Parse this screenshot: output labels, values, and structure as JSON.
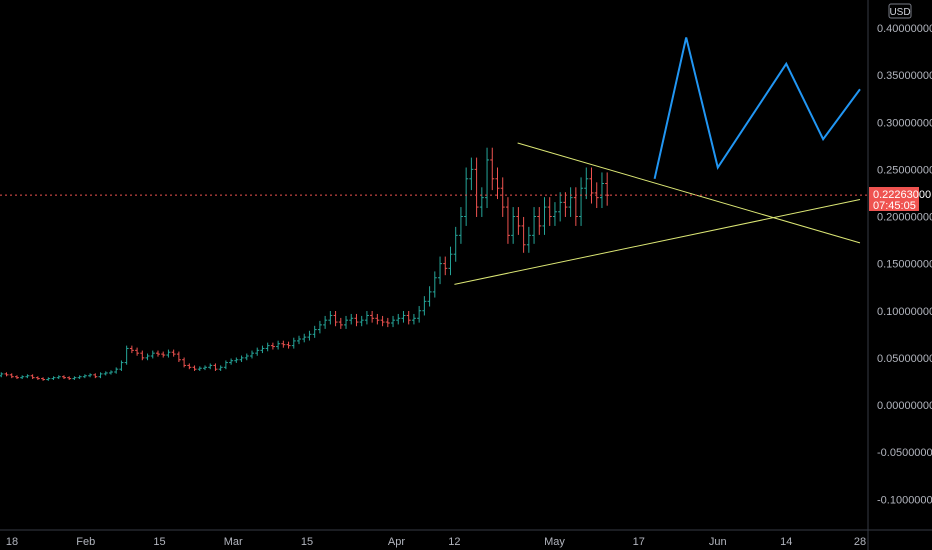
{
  "chart_data": {
    "type": "candlestick",
    "currency": "USD",
    "last_price": "0.22263000",
    "countdown": "07:45:05",
    "y_ticks": [
      "0.40000000",
      "0.35000000",
      "0.30000000",
      "0.25000000",
      "0.20000000",
      "0.15000000",
      "0.10000000",
      "0.05000000",
      "0.00000000",
      "-0.05000000",
      "-0.10000000"
    ],
    "y_values": [
      0.4,
      0.35,
      0.3,
      0.25,
      0.2,
      0.15,
      0.1,
      0.05,
      0.0,
      -0.05,
      -0.1
    ],
    "x_ticks": [
      "18",
      "Feb",
      "15",
      "Mar",
      "15",
      "Apr",
      "12",
      "May",
      "17",
      "Jun",
      "14",
      "28"
    ],
    "ylim": [
      -0.12,
      0.42
    ],
    "grid": false,
    "candles": {
      "start_date": "2021-01-18",
      "closes": [
        0.028,
        0.029,
        0.03,
        0.031,
        0.033,
        0.032,
        0.03,
        0.029,
        0.03,
        0.031,
        0.029,
        0.028,
        0.027,
        0.028,
        0.029,
        0.03,
        0.029,
        0.028,
        0.029,
        0.03,
        0.031,
        0.032,
        0.03,
        0.033,
        0.034,
        0.035,
        0.038,
        0.045,
        0.06,
        0.058,
        0.055,
        0.05,
        0.052,
        0.055,
        0.054,
        0.053,
        0.056,
        0.054,
        0.048,
        0.042,
        0.04,
        0.038,
        0.039,
        0.04,
        0.042,
        0.038,
        0.04,
        0.045,
        0.047,
        0.048,
        0.05,
        0.052,
        0.055,
        0.058,
        0.06,
        0.063,
        0.062,
        0.065,
        0.064,
        0.063,
        0.068,
        0.07,
        0.072,
        0.075,
        0.08,
        0.085,
        0.09,
        0.095,
        0.088,
        0.085,
        0.09,
        0.092,
        0.088,
        0.09,
        0.095,
        0.092,
        0.09,
        0.088,
        0.087,
        0.09,
        0.092,
        0.095,
        0.09,
        0.092,
        0.1,
        0.11,
        0.12,
        0.135,
        0.15,
        0.145,
        0.16,
        0.18,
        0.2,
        0.24,
        0.25,
        0.21,
        0.22,
        0.26,
        0.24,
        0.23,
        0.21,
        0.18,
        0.2,
        0.19,
        0.17,
        0.18,
        0.2,
        0.19,
        0.21,
        0.2,
        0.205,
        0.215,
        0.21,
        0.22,
        0.2,
        0.23,
        0.24,
        0.225,
        0.22,
        0.235,
        0.2226
      ]
    },
    "trendlines": [
      {
        "points": [
          [
            "2021-04-24",
            0.278
          ],
          [
            "2021-06-28",
            0.172
          ]
        ]
      },
      {
        "points": [
          [
            "2021-04-12",
            0.128
          ],
          [
            "2021-06-28",
            0.218
          ]
        ]
      }
    ],
    "projection": {
      "points": [
        [
          "2021-05-20",
          0.24
        ],
        [
          "2021-05-26",
          0.39
        ],
        [
          "2021-06-01",
          0.252
        ],
        [
          "2021-06-14",
          0.362
        ],
        [
          "2021-06-21",
          0.282
        ],
        [
          "2021-06-28",
          0.335
        ]
      ]
    },
    "colors": {
      "up": "#26a69a",
      "down": "#ef5350",
      "trendline": "#dce775",
      "projection": "#2196f3",
      "badge": "#ef5350",
      "axis": "#b2b5be",
      "price_line": "#ef5350"
    }
  }
}
